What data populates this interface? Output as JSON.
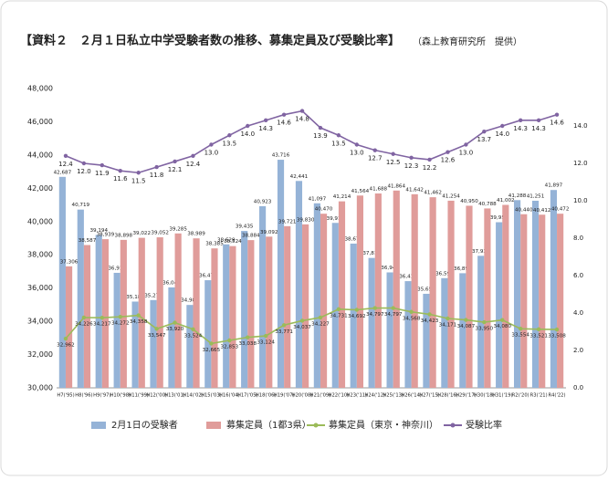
{
  "chart_data": {
    "type": "bar",
    "title": "【資料２　２月１日私立中学受験者数の推移、募集定員及び受験比率】",
    "subtitle": "（森上教育研究所　提供）",
    "categories": [
      "H7('95)",
      "H8('96)",
      "H9('97)",
      "H10('98)",
      "H11('99)",
      "H12('00)",
      "H13('01)",
      "H14('02)",
      "H15('03)",
      "H16('04)",
      "H17('05)",
      "H18('06)",
      "H19('07)",
      "H20('08)",
      "H21('09)",
      "H22('10)",
      "H23('11)",
      "H24('12)",
      "H25('13)",
      "H26('14)",
      "H27('15)",
      "H28('16)",
      "H29('17)",
      "H30('18)",
      "H31('19)",
      "R2('20)",
      "R3('21)",
      "R4('22)"
    ],
    "series": [
      {
        "name": "2月1日の受験者",
        "type": "bar",
        "color": "#95b3d7",
        "values": [
          42687,
          40719,
          39194,
          36916,
          35187,
          35278,
          36040,
          34984,
          36472,
          38629,
          39435,
          40923,
          43716,
          42441,
          41097,
          39919,
          38673,
          37811,
          36942,
          36416,
          35655,
          36595,
          36893,
          37939,
          39959,
          41288,
          41251,
          41897
        ],
        "value_labels": [
          "42,687",
          "40,719",
          "39,194",
          "36,916",
          "35,187",
          "35,278",
          "36,040",
          "34,984",
          "36,472",
          "38,629",
          "39,435",
          "40,923",
          "43,716",
          "42,441",
          "41,097",
          "39,919",
          "38,673",
          "37,811",
          "36,942",
          "36,416",
          "35,655",
          "36,595",
          "36,893",
          "37,939",
          "39,959",
          "41,288",
          "41,251",
          "41,897"
        ]
      },
      {
        "name": "募集定員（1都3県）",
        "type": "bar",
        "color": "#e09c9a",
        "values": [
          37306,
          38587,
          38939,
          38898,
          39022,
          39052,
          39285,
          38989,
          38385,
          38524,
          38884,
          39092,
          39721,
          39830,
          40470,
          41214,
          41564,
          41688,
          41864,
          41642,
          41462,
          41254,
          40950,
          40788,
          41002,
          40440,
          40412,
          40472
        ],
        "value_labels": [
          "37,306",
          "38,587",
          "38,939",
          "38,898",
          "39,022",
          "39,052",
          "39,285",
          "38,989",
          "38,385",
          "38,524",
          "38,884",
          "39,092",
          "39,721",
          "39,830",
          "40,470",
          "41,214",
          "41,564",
          "41,688",
          "41,864",
          "41,642",
          "41,462",
          "41,254",
          "40,950",
          "40,788",
          "41,002",
          "40,440",
          "40,412",
          "40,472"
        ]
      },
      {
        "name": "募集定員（東京・神奈川）",
        "type": "line",
        "color": "#9bbb59",
        "values": [
          32962,
          34226,
          34217,
          34272,
          34358,
          33547,
          33920,
          33524,
          32665,
          32853,
          33038,
          33124,
          33771,
          34037,
          34227,
          34731,
          34692,
          34797,
          34797,
          34568,
          34423,
          34171,
          34087,
          33950,
          34080,
          33554,
          33521,
          33508
        ],
        "value_labels": [
          "32,962",
          "34,226",
          "34,217",
          "34,272",
          "34,358",
          "33,547",
          "33,920",
          "33,524",
          "32,665",
          "32,853",
          "33,038",
          "33,124",
          "33,771",
          "34,037",
          "34,227",
          "34,731",
          "34,692",
          "34,797",
          "34,797",
          "34,568",
          "34,423",
          "34,171",
          "34,087",
          "33,950",
          "34,080",
          "33,554",
          "33,521",
          "33,508"
        ]
      },
      {
        "name": "受験比率",
        "type": "line",
        "axis": "y2",
        "color": "#8064a2",
        "values": [
          12.4,
          12,
          11.9,
          11.6,
          11.5,
          11.8,
          12.1,
          12.4,
          13,
          13.5,
          14,
          14.3,
          14.6,
          14.8,
          13.9,
          13.5,
          13,
          12.7,
          12.5,
          12.3,
          12.2,
          12.6,
          13,
          13.7,
          14,
          14.3,
          14.3,
          14.6
        ],
        "value_labels": [
          "12.4",
          "12.0",
          "11.9",
          "11.6",
          "11.5",
          "11.8",
          "12.1",
          "12.4",
          "13.0",
          "13.5",
          "14.0",
          "14.3",
          "14.6",
          "14.8",
          "13.9",
          "13.5",
          "13.0",
          "12.7",
          "12.5",
          "12.3",
          "12.2",
          "12.6",
          "13.0",
          "13.7",
          "14.0",
          "14.3",
          "14.3",
          "14.6"
        ]
      }
    ],
    "ylim": [
      30000,
      48000
    ],
    "yticks": [
      {
        "value": 30000,
        "label": "30,000"
      },
      {
        "value": 32000,
        "label": "32,000"
      },
      {
        "value": 34000,
        "label": "34,000"
      },
      {
        "value": 36000,
        "label": "36,000"
      },
      {
        "value": 38000,
        "label": "38,000"
      },
      {
        "value": 40000,
        "label": "40,000"
      },
      {
        "value": 42000,
        "label": "42,000"
      },
      {
        "value": 44000,
        "label": "44,000"
      },
      {
        "value": 46000,
        "label": "46,000"
      },
      {
        "value": 48000,
        "label": "48,000"
      }
    ],
    "y2lim": [
      0,
      16
    ],
    "y2ticks": [
      {
        "value": 0,
        "label": "0.0"
      },
      {
        "value": 2,
        "label": "2.0"
      },
      {
        "value": 4,
        "label": "4.0"
      },
      {
        "value": 6,
        "label": "6.0"
      },
      {
        "value": 8,
        "label": "8.0"
      },
      {
        "value": 10,
        "label": "10.0"
      },
      {
        "value": 12,
        "label": "12.0"
      },
      {
        "value": 14,
        "label": "14.0"
      }
    ],
    "grid": false
  }
}
